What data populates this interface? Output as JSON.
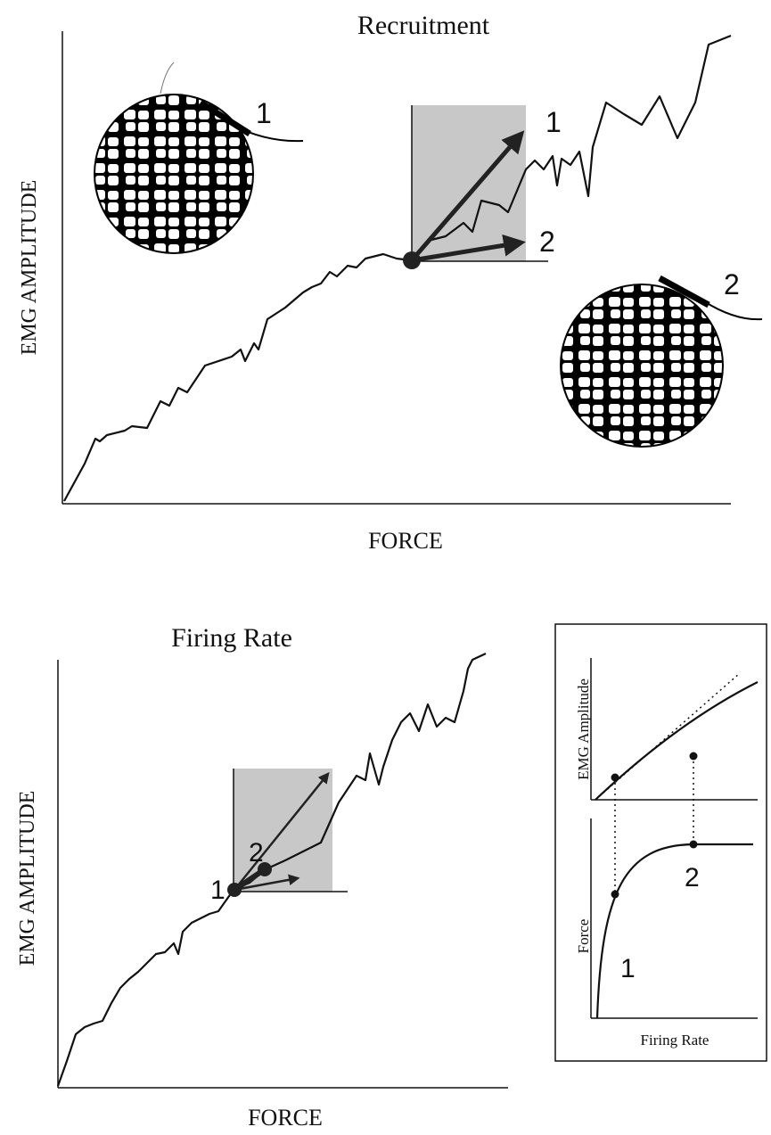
{
  "recruitment": {
    "title": "Recruitment",
    "y_axis_label": "EMG AMPLITUDE",
    "x_axis_label": "FORCE",
    "vector_labels": [
      "1",
      "2"
    ],
    "electrode_labels": [
      "1",
      "2"
    ]
  },
  "firing_rate": {
    "title": "Firing Rate",
    "y_axis_label": "EMG AMPLITUDE",
    "x_axis_label": "FORCE",
    "point_labels": [
      "1",
      "2"
    ]
  },
  "inset": {
    "top_y_label": "EMG Amplitude",
    "bottom_y_label": "Force",
    "x_label": "Firing Rate",
    "point_labels": [
      "1",
      "2"
    ]
  }
}
